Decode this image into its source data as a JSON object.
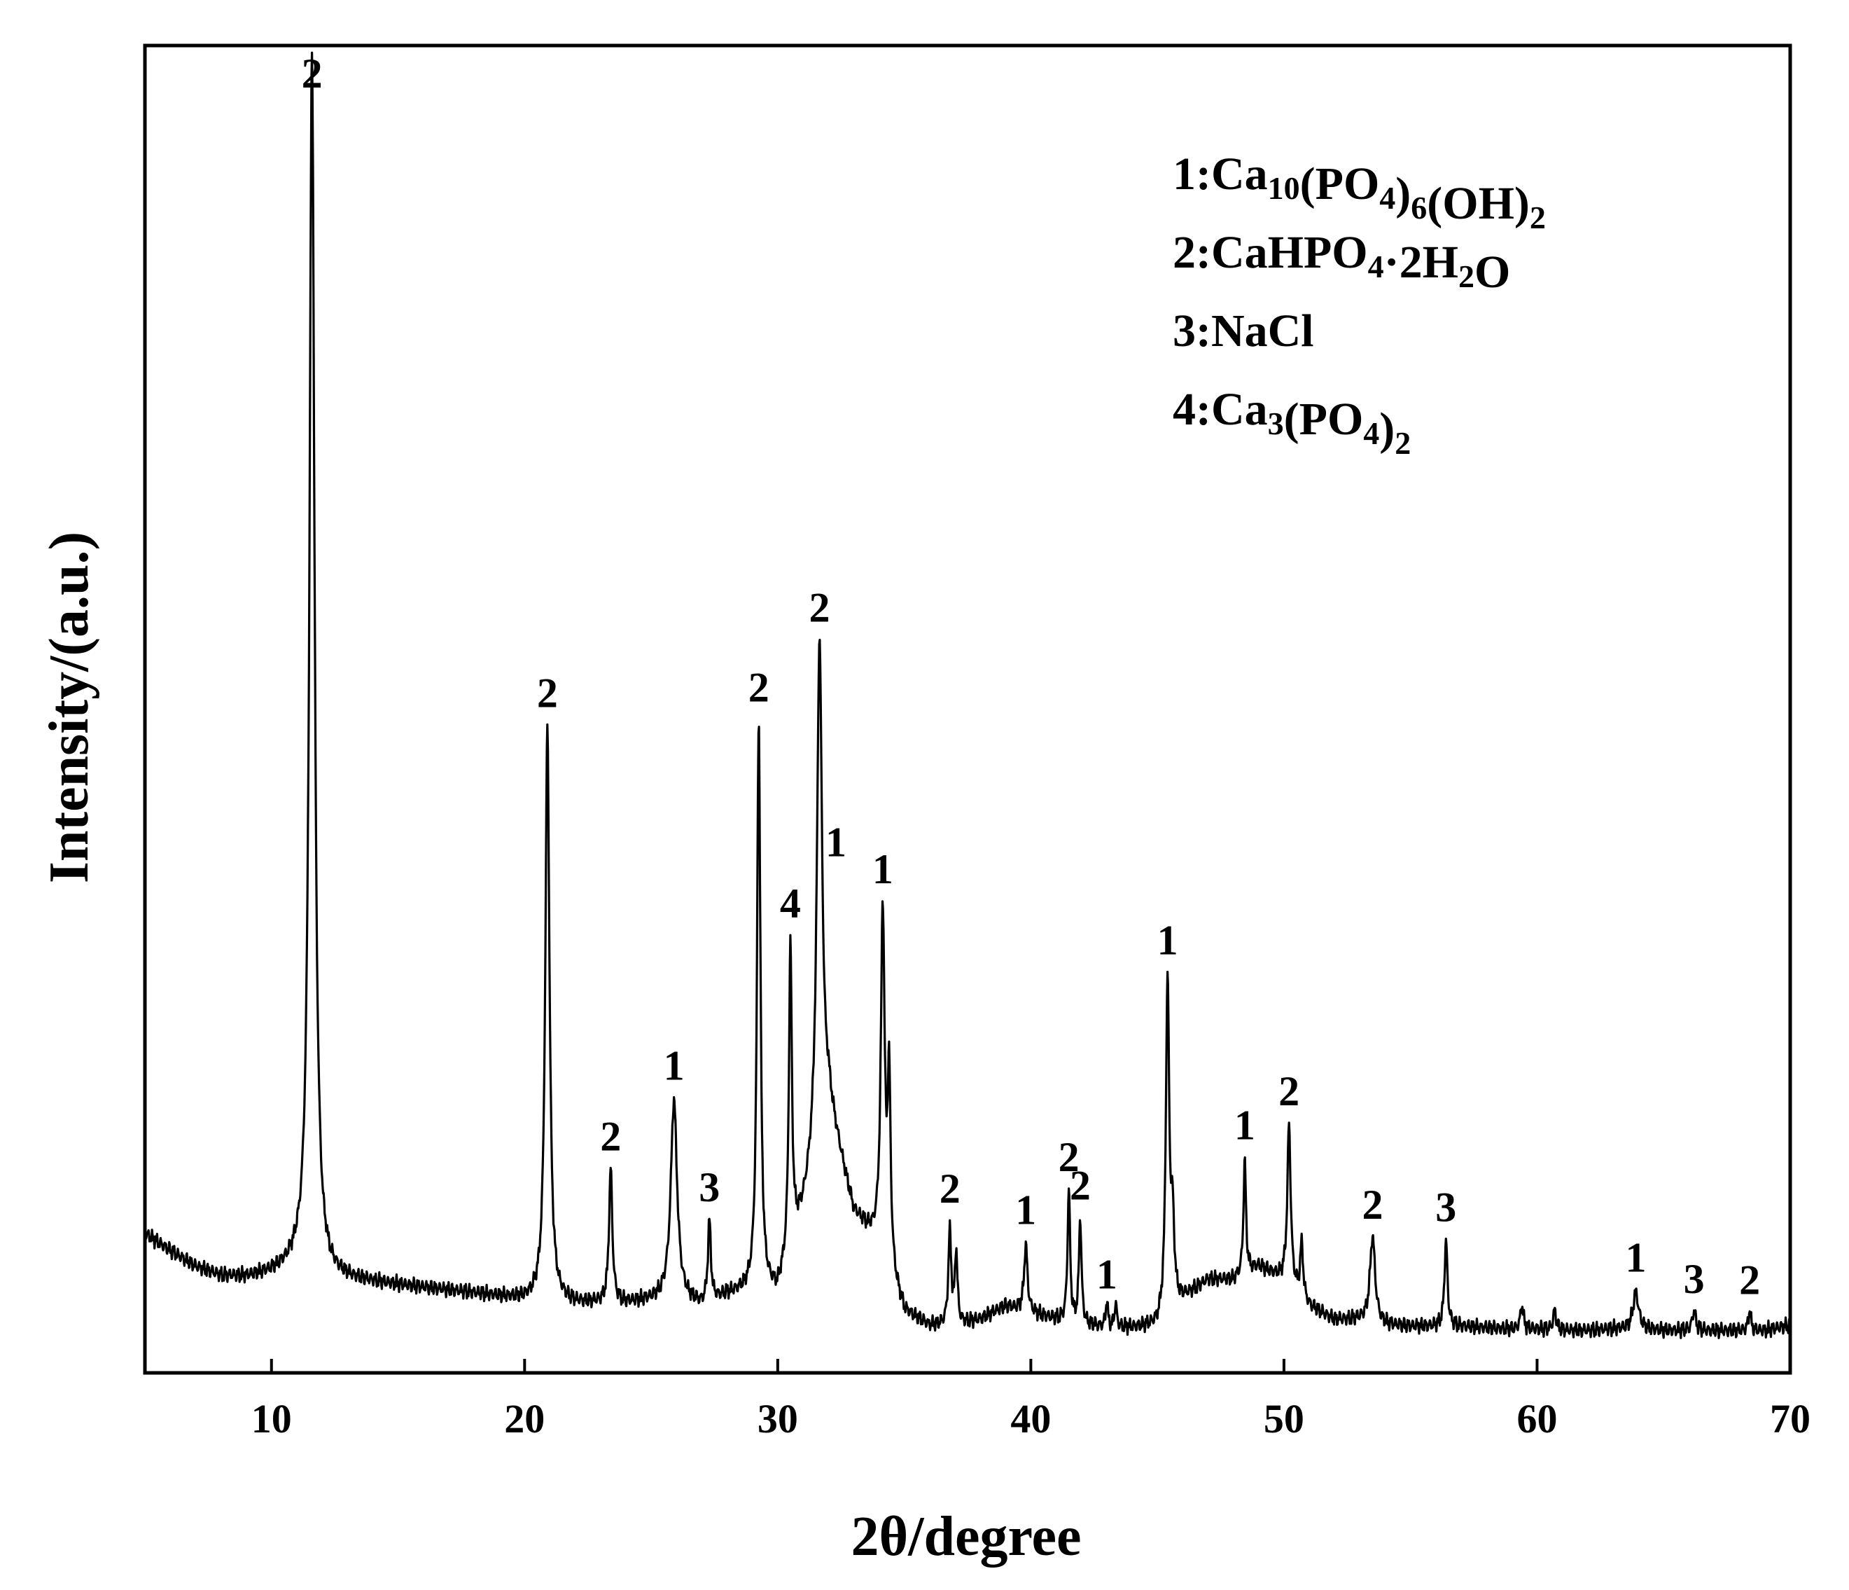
{
  "chart_data": {
    "type": "line",
    "title": "",
    "xlabel": "2θ/degree",
    "ylabel": "Intensity/(a.u.)",
    "xlim": [
      5,
      70
    ],
    "ylim": [
      0,
      1000
    ],
    "x_ticks": [
      10,
      20,
      30,
      40,
      50,
      60,
      70
    ],
    "x_tick_labels": [
      "10",
      "20",
      "30",
      "40",
      "50",
      "60",
      "70"
    ],
    "y_ticks_shown": false,
    "grid": false,
    "legend_placement": "top-right",
    "legend": [
      {
        "id": "1",
        "parts": [
          {
            "t": "1:Ca"
          },
          {
            "t": "10",
            "sub": true
          },
          {
            "t": "(PO"
          },
          {
            "t": "4",
            "sub": true
          },
          {
            "t": ")"
          },
          {
            "t": "6",
            "sub": true
          },
          {
            "t": "(OH)"
          },
          {
            "t": "2",
            "sub": true
          }
        ]
      },
      {
        "id": "2",
        "parts": [
          {
            "t": "2:CaHPO"
          },
          {
            "t": "4",
            "sub": true
          },
          {
            "t": "·2H"
          },
          {
            "t": "2",
            "sub": true
          },
          {
            "t": "O"
          }
        ]
      },
      {
        "id": "3",
        "parts": [
          {
            "t": "3:NaCl"
          }
        ]
      },
      {
        "id": "4",
        "parts": [
          {
            "t": "4:Ca"
          },
          {
            "t": "3",
            "sub": true
          },
          {
            "t": "(PO"
          },
          {
            "t": "4",
            "sub": true
          },
          {
            "t": ")"
          },
          {
            "t": "2",
            "sub": true
          }
        ]
      }
    ],
    "baseline": [
      [
        5,
        105
      ],
      [
        6,
        92
      ],
      [
        7,
        80
      ],
      [
        8,
        73
      ],
      [
        9,
        72
      ],
      [
        10,
        75
      ],
      [
        11,
        80
      ],
      [
        12,
        72
      ],
      [
        14,
        68
      ],
      [
        16,
        64
      ],
      [
        18,
        60
      ],
      [
        20,
        55
      ],
      [
        21,
        55
      ],
      [
        22,
        52
      ],
      [
        23,
        52
      ],
      [
        24,
        52
      ],
      [
        25,
        54
      ],
      [
        26,
        55
      ],
      [
        27,
        50
      ],
      [
        28,
        58
      ],
      [
        29,
        62
      ],
      [
        30,
        60
      ],
      [
        31,
        120
      ],
      [
        32,
        200
      ],
      [
        33,
        120
      ],
      [
        34,
        95
      ],
      [
        35,
        45
      ],
      [
        36,
        35
      ],
      [
        37,
        35
      ],
      [
        38,
        40
      ],
      [
        39,
        50
      ],
      [
        40,
        45
      ],
      [
        41,
        40
      ],
      [
        42,
        36
      ],
      [
        43,
        34
      ],
      [
        44,
        34
      ],
      [
        45,
        35
      ],
      [
        46,
        55
      ],
      [
        47,
        70
      ],
      [
        48,
        70
      ],
      [
        49,
        80
      ],
      [
        50,
        70
      ],
      [
        51,
        50
      ],
      [
        52,
        40
      ],
      [
        53,
        40
      ],
      [
        54,
        36
      ],
      [
        55,
        35
      ],
      [
        56,
        35
      ],
      [
        57,
        35
      ],
      [
        58,
        34
      ],
      [
        59,
        33
      ],
      [
        60,
        33
      ],
      [
        61,
        32
      ],
      [
        62,
        32
      ],
      [
        63,
        33
      ],
      [
        64,
        33
      ],
      [
        65,
        32
      ],
      [
        66,
        32
      ],
      [
        67,
        32
      ],
      [
        68,
        32
      ],
      [
        69,
        32
      ],
      [
        70,
        36
      ]
    ],
    "peaks": [
      {
        "x": 11.6,
        "intensity": 920,
        "width": 0.12,
        "label": "2"
      },
      {
        "x": 20.9,
        "intensity": 430,
        "width": 0.1,
        "label": "2"
      },
      {
        "x": 23.4,
        "intensity": 100,
        "width": 0.08,
        "label": "2"
      },
      {
        "x": 25.9,
        "intensity": 150,
        "width": 0.15,
        "label": "1"
      },
      {
        "x": 27.3,
        "intensity": 60,
        "width": 0.07,
        "label": "3"
      },
      {
        "x": 29.25,
        "intensity": 430,
        "width": 0.08,
        "label": "2"
      },
      {
        "x": 30.5,
        "intensity": 230,
        "width": 0.07,
        "label": "4"
      },
      {
        "x": 31.65,
        "intensity": 380,
        "width": 0.12,
        "label": "2"
      },
      {
        "x": 32.3,
        "intensity": 200,
        "width": 0.0,
        "label": "1"
      },
      {
        "x": 34.15,
        "intensity": 260,
        "width": 0.09,
        "label": "1"
      },
      {
        "x": 34.4,
        "intensity": 140,
        "width": 0.07,
        "label": ""
      },
      {
        "x": 36.8,
        "intensity": 70,
        "width": 0.07,
        "label": "2"
      },
      {
        "x": 37.05,
        "intensity": 55,
        "width": 0.06,
        "label": ""
      },
      {
        "x": 39.8,
        "intensity": 50,
        "width": 0.08,
        "label": "1"
      },
      {
        "x": 41.5,
        "intensity": 100,
        "width": 0.06,
        "label": "2"
      },
      {
        "x": 41.95,
        "intensity": 80,
        "width": 0.06,
        "label": "2"
      },
      {
        "x": 43.0,
        "intensity": 20,
        "width": 0.05,
        "label": "1"
      },
      {
        "x": 43.35,
        "intensity": 18,
        "width": 0.05,
        "label": ""
      },
      {
        "x": 45.4,
        "intensity": 250,
        "width": 0.08,
        "label": "1"
      },
      {
        "x": 45.6,
        "intensity": 60,
        "width": 0.08,
        "label": ""
      },
      {
        "x": 48.45,
        "intensity": 85,
        "width": 0.06,
        "label": "1"
      },
      {
        "x": 50.2,
        "intensity": 120,
        "width": 0.08,
        "label": "2"
      },
      {
        "x": 50.7,
        "intensity": 40,
        "width": 0.07,
        "label": ""
      },
      {
        "x": 53.5,
        "intensity": 65,
        "width": 0.12,
        "label": "2"
      },
      {
        "x": 56.4,
        "intensity": 65,
        "width": 0.07,
        "label": "3"
      },
      {
        "x": 59.4,
        "intensity": 18,
        "width": 0.07,
        "label": ""
      },
      {
        "x": 60.7,
        "intensity": 15,
        "width": 0.07,
        "label": ""
      },
      {
        "x": 63.9,
        "intensity": 28,
        "width": 0.13,
        "label": "1"
      },
      {
        "x": 66.2,
        "intensity": 15,
        "width": 0.08,
        "label": "3"
      },
      {
        "x": 68.4,
        "intensity": 15,
        "width": 0.06,
        "label": "2"
      }
    ]
  }
}
